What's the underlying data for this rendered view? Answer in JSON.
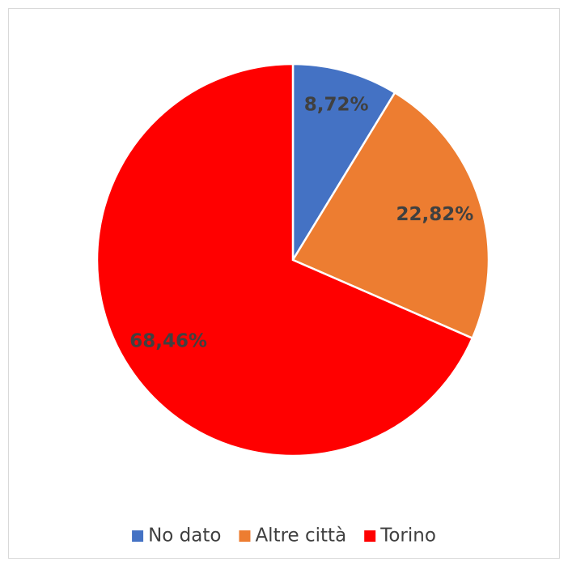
{
  "chart_data": {
    "type": "pie",
    "categories": [
      "No dato",
      "Altre città",
      "Torino"
    ],
    "values": [
      8.72,
      22.82,
      68.46
    ],
    "value_labels": [
      "8,72%",
      "22,82%",
      "68,46%"
    ],
    "colors": [
      "#4472c4",
      "#ed7d31",
      "#ff0000"
    ],
    "legend": "bottom"
  }
}
